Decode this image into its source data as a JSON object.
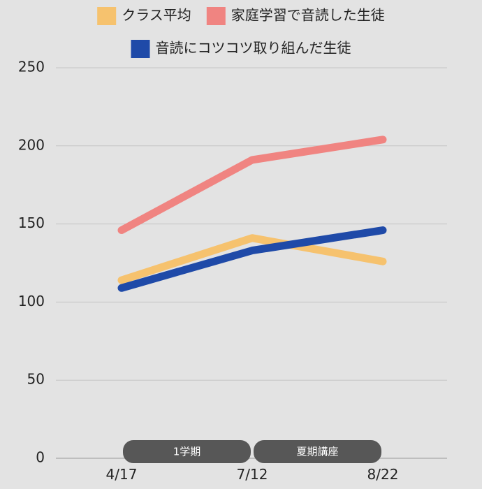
{
  "chart_data": {
    "type": "line",
    "title": "",
    "xlabel": "",
    "ylabel": "",
    "categories": [
      "4/17",
      "7/12",
      "8/22"
    ],
    "ylim": [
      0,
      250
    ],
    "yticks": [
      0,
      50,
      100,
      150,
      200,
      250
    ],
    "grid": true,
    "legend_position": "top",
    "series": [
      {
        "name": "クラス平均",
        "color": "#f6c26e",
        "values": [
          114,
          141,
          126
        ]
      },
      {
        "name": "家庭学習で音読した生徒",
        "color": "#f08481",
        "values": [
          146,
          191,
          204
        ]
      },
      {
        "name": "音読にコツコツ取り組んだ生徒",
        "color": "#1f4aa8",
        "values": [
          109,
          133,
          146
        ]
      }
    ],
    "periods": [
      {
        "label": "1学期",
        "from": "4/17",
        "to": "7/12"
      },
      {
        "label": "夏期講座",
        "from": "7/12",
        "to": "8/22"
      }
    ]
  }
}
